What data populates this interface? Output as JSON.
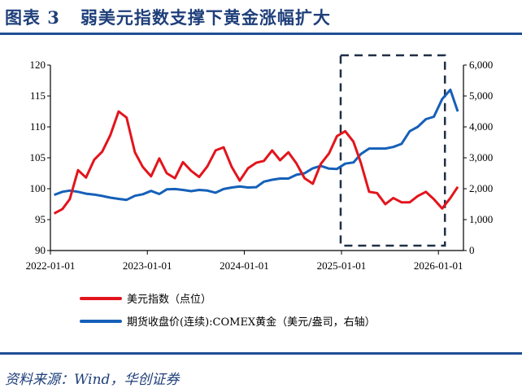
{
  "header": {
    "title": "图表 3   弱美元指数支撑下黄金涨幅扩大"
  },
  "footer": {
    "source": "资料来源：Wind，华创证券"
  },
  "colors": {
    "dxy": "#e3141c",
    "gold": "#1560b8",
    "box": "#1f2f45",
    "title": "#1f3f7a"
  },
  "chart_data": {
    "type": "line",
    "x_ticks": [
      "2022-01-01",
      "2023-01-01",
      "2024-01-01",
      "2025-01-01",
      "2026-01-01"
    ],
    "y_left": {
      "range": [
        90,
        120
      ],
      "ticks": [
        "90",
        "95",
        "100",
        "105",
        "110",
        "115",
        "120"
      ]
    },
    "y_right": {
      "range": [
        0,
        6000
      ],
      "ticks": [
        "0",
        "1,000",
        "2,000",
        "3,000",
        "4,000",
        "5,000",
        "6,000"
      ]
    },
    "highlight": {
      "style": "dashed box",
      "from": "2025-01",
      "to": "2026-01"
    },
    "x": [
      "2022-01",
      "2022-02",
      "2022-03",
      "2022-04",
      "2022-05",
      "2022-06",
      "2022-07",
      "2022-08",
      "2022-09",
      "2022-10",
      "2022-11",
      "2022-12",
      "2023-01",
      "2023-02",
      "2023-03",
      "2023-04",
      "2023-05",
      "2023-06",
      "2023-07",
      "2023-08",
      "2023-09",
      "2023-10",
      "2023-11",
      "2023-12",
      "2024-01",
      "2024-02",
      "2024-03",
      "2024-04",
      "2024-05",
      "2024-06",
      "2024-07",
      "2024-08",
      "2024-09",
      "2024-10",
      "2024-11",
      "2024-12",
      "2025-01",
      "2025-02",
      "2025-03",
      "2025-04",
      "2025-05",
      "2025-06",
      "2025-07",
      "2025-08",
      "2025-09",
      "2025-10",
      "2025-11",
      "2025-12",
      "2026-01",
      "2026-02",
      "2026-03"
    ],
    "series": [
      {
        "name": "美元指数（点位）",
        "axis": "left",
        "values": [
          96.0,
          96.7,
          98.3,
          103.0,
          101.8,
          104.7,
          106.0,
          108.7,
          112.5,
          111.5,
          105.9,
          103.5,
          102.0,
          104.9,
          102.5,
          101.7,
          104.3,
          102.9,
          101.9,
          103.6,
          106.2,
          106.7,
          103.5,
          101.3,
          103.3,
          104.2,
          104.5,
          106.2,
          104.6,
          105.9,
          104.1,
          101.7,
          100.8,
          104.0,
          105.7,
          108.5,
          109.3,
          107.6,
          104.2,
          99.5,
          99.3,
          97.5,
          98.5,
          97.8,
          97.8,
          98.8,
          99.5,
          98.3,
          96.8,
          98.5,
          100.3
        ]
      },
      {
        "name": "期货收盘价(连续):COMEX黄金（美元/盎司，右轴）",
        "axis": "right",
        "values": [
          1800,
          1900,
          1940,
          1900,
          1840,
          1810,
          1765,
          1710,
          1670,
          1640,
          1770,
          1820,
          1930,
          1830,
          1980,
          1990,
          1960,
          1920,
          1960,
          1940,
          1870,
          1990,
          2040,
          2070,
          2040,
          2050,
          2230,
          2290,
          2330,
          2330,
          2450,
          2500,
          2660,
          2740,
          2650,
          2640,
          2810,
          2850,
          3120,
          3300,
          3300,
          3300,
          3350,
          3450,
          3860,
          4000,
          4250,
          4330,
          4900,
          5200,
          4500
        ]
      }
    ]
  }
}
